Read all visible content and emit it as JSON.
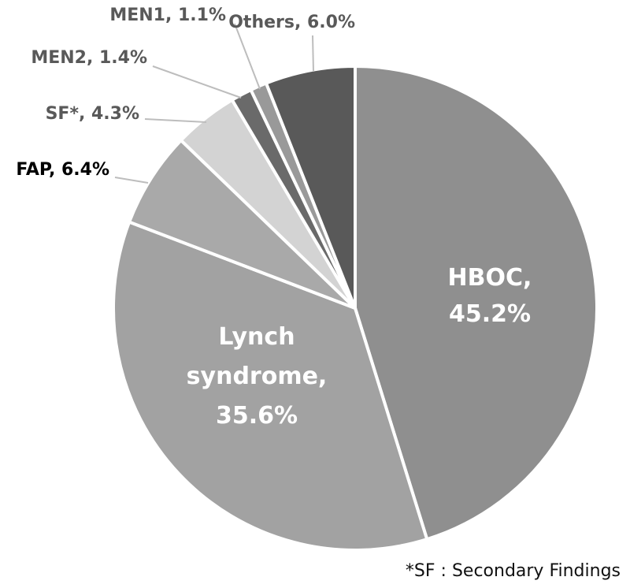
{
  "chart_data": {
    "type": "pie",
    "title": "",
    "slices": [
      {
        "name": "HBOC",
        "value": 45.2,
        "label_lines": [
          "HBOC,",
          "45.2%"
        ],
        "color": "#8f8f8f",
        "label_color": "#ffffff",
        "label_mode": "inside"
      },
      {
        "name": "Lynch syndrome",
        "value": 35.6,
        "label_lines": [
          "Lynch",
          "syndrome,",
          "35.6%"
        ],
        "color": "#a2a2a2",
        "label_color": "#ffffff",
        "label_mode": "inside"
      },
      {
        "name": "FAP",
        "value": 6.4,
        "label_lines": [
          "FAP, 6.4%"
        ],
        "color": "#a9a9a9",
        "label_color": "#000000",
        "label_mode": "outside"
      },
      {
        "name": "SF*",
        "value": 4.3,
        "label_lines": [
          "SF*, 4.3%"
        ],
        "color": "#d3d3d3",
        "label_color": "#595959",
        "label_mode": "outside"
      },
      {
        "name": "MEN2",
        "value": 1.4,
        "label_lines": [
          "MEN2, 1.4%"
        ],
        "color": "#6a6a6a",
        "label_color": "#595959",
        "label_mode": "outside"
      },
      {
        "name": "MEN1",
        "value": 1.1,
        "label_lines": [
          "MEN1, 1.1%"
        ],
        "color": "#999999",
        "label_color": "#595959",
        "label_mode": "outside"
      },
      {
        "name": "Others",
        "value": 6.0,
        "label_lines": [
          "Others, 6.0%"
        ],
        "color": "#595959",
        "label_color": "#595959",
        "label_mode": "outside"
      }
    ],
    "start_angle": "12 o'clock",
    "direction": "clockwise",
    "legend": "none"
  },
  "footnote": "*SF : Secondary Findings"
}
